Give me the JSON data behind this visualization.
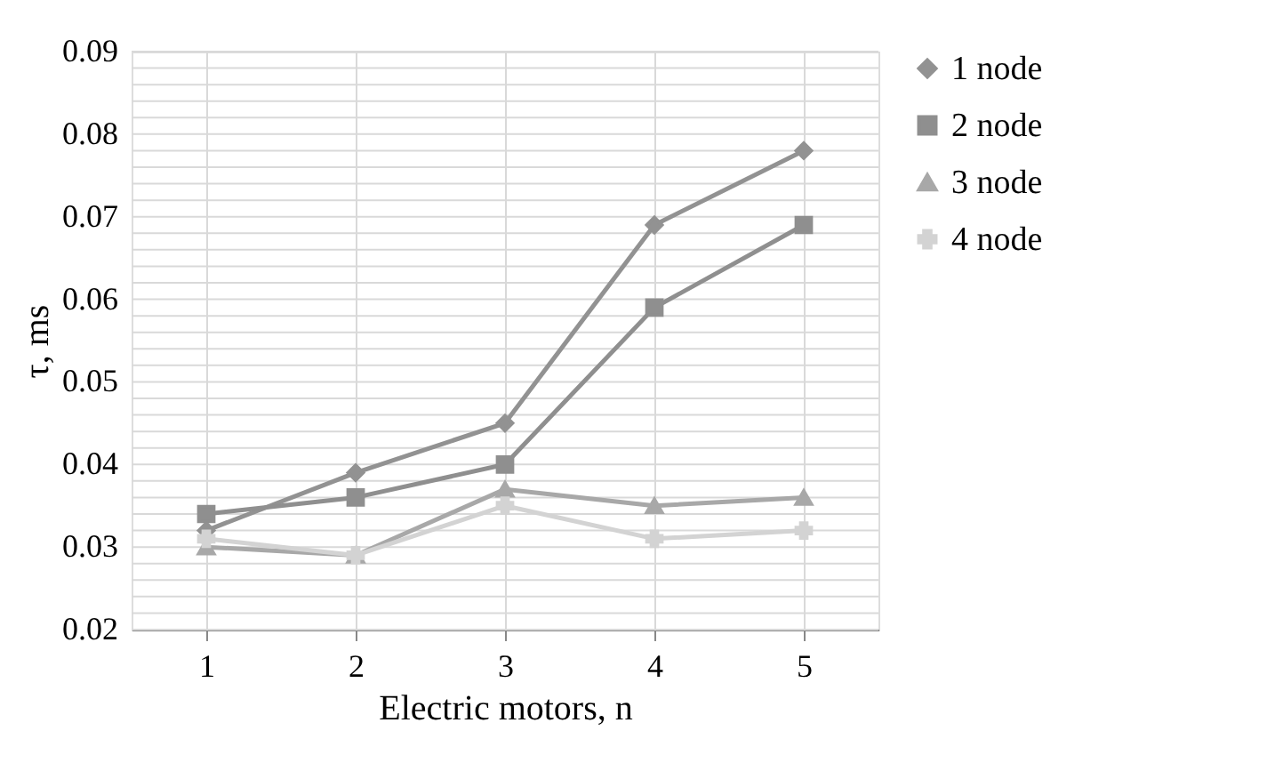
{
  "chart_data": {
    "type": "line",
    "xlabel": "Electric motors, n",
    "ylabel": "τ, ms",
    "categories": [
      "1",
      "2",
      "3",
      "4",
      "5"
    ],
    "series": [
      {
        "name": "1 node",
        "color": "#929292",
        "marker": "diamond",
        "values": [
          0.032,
          0.039,
          0.045,
          0.069,
          0.078
        ]
      },
      {
        "name": "2 node",
        "color": "#8f8f8f",
        "marker": "square",
        "values": [
          0.034,
          0.036,
          0.04,
          0.059,
          0.069
        ]
      },
      {
        "name": "3 node",
        "color": "#a8a8a8",
        "marker": "triangle",
        "values": [
          0.03,
          0.029,
          0.037,
          0.035,
          0.036
        ]
      },
      {
        "name": "4 node",
        "color": "#d3d3d3",
        "marker": "cross",
        "values": [
          0.031,
          0.029,
          0.035,
          0.031,
          0.032
        ]
      }
    ],
    "ylim": [
      0.02,
      0.09
    ],
    "yticks": [
      0.02,
      {
        "value": 0.022,
        "label": null
      },
      {
        "value": 0.024,
        "label": null
      },
      {
        "value": 0.026,
        "label": null
      },
      {
        "value": 0.028,
        "label": null
      },
      0.03,
      {
        "value": 0.032,
        "label": null
      },
      {
        "value": 0.034,
        "label": null
      },
      {
        "value": 0.036,
        "label": null
      },
      {
        "value": 0.038,
        "label": null
      },
      0.04,
      {
        "value": 0.042,
        "label": null
      },
      {
        "value": 0.044,
        "label": null
      },
      {
        "value": 0.046,
        "label": null
      },
      {
        "value": 0.048,
        "label": null
      },
      0.05,
      {
        "value": 0.052,
        "label": null
      },
      {
        "value": 0.054,
        "label": null
      },
      {
        "value": 0.056,
        "label": null
      },
      {
        "value": 0.058,
        "label": null
      },
      0.06,
      {
        "value": 0.062,
        "label": null
      },
      {
        "value": 0.064,
        "label": null
      },
      {
        "value": 0.066,
        "label": null
      },
      {
        "value": 0.068,
        "label": null
      },
      0.07,
      {
        "value": 0.072,
        "label": null
      },
      {
        "value": 0.074,
        "label": null
      },
      {
        "value": 0.076,
        "label": null
      },
      {
        "value": 0.078,
        "label": null
      },
      0.08,
      {
        "value": 0.082,
        "label": null
      },
      {
        "value": 0.084,
        "label": null
      },
      {
        "value": 0.086,
        "label": null
      },
      {
        "value": 0.088,
        "label": null
      },
      0.09
    ],
    "grid": true,
    "legend": "right"
  }
}
